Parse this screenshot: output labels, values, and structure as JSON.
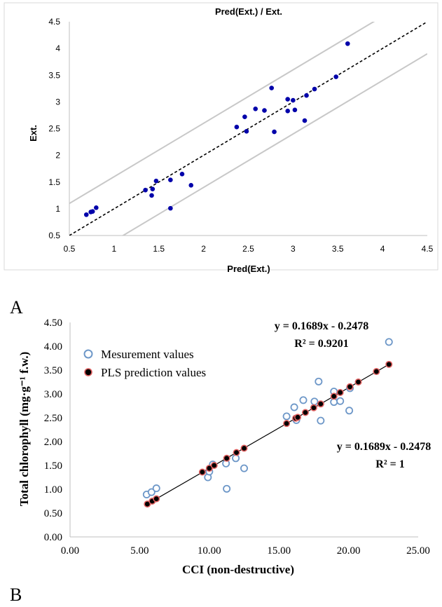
{
  "panel_labels": [
    "A",
    "B"
  ],
  "chart_data": [
    {
      "type": "scatter",
      "title": "Pred(Ext.) / Ext.",
      "xlabel": "Pred(Ext.)",
      "ylabel": "Ext.",
      "xlim": [
        0.5,
        4.5
      ],
      "ylim": [
        0.5,
        4.5
      ],
      "xticks": [
        "0.5",
        "1",
        "1.5",
        "2",
        "2.5",
        "3",
        "3.5",
        "4",
        "4.5"
      ],
      "yticks": [
        "0.5",
        "1",
        "1.5",
        "2",
        "2.5",
        "3",
        "3.5",
        "4",
        "4.5"
      ],
      "grid": false,
      "legend": "none",
      "point_color": "#0000aa",
      "band_color": "#c8c8c8",
      "identity_line": {
        "slope": 1,
        "intercept": 0,
        "style": "dashed"
      },
      "bands": [
        {
          "slope": 1,
          "intercept": 0.6
        },
        {
          "slope": 1,
          "intercept": -0.6
        }
      ],
      "series": [
        {
          "x": [
            0.69,
            0.74,
            0.76,
            0.8,
            1.35,
            1.42,
            1.43,
            1.47,
            1.63,
            1.63,
            1.76,
            1.86,
            2.37,
            2.46,
            2.48,
            2.58,
            2.68,
            2.76,
            2.79,
            2.94,
            2.94,
            3.0,
            3.02,
            3.13,
            3.15,
            3.24,
            3.48,
            3.61
          ],
          "y": [
            0.89,
            0.94,
            0.95,
            1.02,
            1.35,
            1.25,
            1.37,
            1.52,
            1.54,
            1.01,
            1.65,
            1.44,
            2.53,
            2.72,
            2.45,
            2.87,
            2.84,
            3.26,
            2.44,
            3.05,
            2.83,
            3.03,
            2.85,
            2.65,
            3.12,
            3.24,
            3.47,
            4.09
          ]
        }
      ]
    },
    {
      "type": "scatter",
      "title": "",
      "xlabel": "CCI (non-destructive)",
      "ylabel": "Total chlorophyll (mg·g⁻¹ f.w.)",
      "xlim": [
        0,
        25
      ],
      "ylim": [
        0,
        4.5
      ],
      "xticks": [
        "0.00",
        "5.00",
        "10.00",
        "15.00",
        "20.00",
        "25.00"
      ],
      "yticks": [
        "0.00",
        "0.50",
        "1.00",
        "1.50",
        "2.00",
        "2.50",
        "3.00",
        "3.50",
        "4.00",
        "4.50"
      ],
      "grid": false,
      "legend": "top-left",
      "annotations": [
        {
          "line1": "y = 0.1689x - 0.2478",
          "line2": "R² = 0.9201"
        },
        {
          "line1": "y = 0.1689x - 0.2478",
          "line2": "R² = 1"
        }
      ],
      "trendline": {
        "slope": 0.1689,
        "intercept": -0.2478,
        "from": 5.5,
        "to": 22.9
      },
      "series": [
        {
          "name": "Mesurement values",
          "marker": "open-circle",
          "color": "#6d97c8",
          "x": [
            5.5,
            5.85,
            6.2,
            9.9,
            10.0,
            10.25,
            11.2,
            11.25,
            11.9,
            12.5,
            15.55,
            16.1,
            16.25,
            16.75,
            17.55,
            17.85,
            18.0,
            18.95,
            18.95,
            19.4,
            20.05,
            20.1,
            22.9
          ],
          "y": [
            0.89,
            0.94,
            1.02,
            1.25,
            1.37,
            1.52,
            1.54,
            1.01,
            1.65,
            1.44,
            2.53,
            2.72,
            2.45,
            2.87,
            2.84,
            3.26,
            2.44,
            3.05,
            2.83,
            2.85,
            2.65,
            3.12,
            4.09
          ]
        },
        {
          "name": "PLS prediction values",
          "marker": "filled-circle",
          "color": "#000000",
          "edge_color": "#e06060",
          "x": [
            5.55,
            5.9,
            6.2,
            9.5,
            10.0,
            10.35,
            11.25,
            11.95,
            12.5,
            15.55,
            16.2,
            16.35,
            16.9,
            17.5,
            18.0,
            18.95,
            19.4,
            20.1,
            20.7,
            22.0,
            22.9
          ],
          "y": [
            0.69,
            0.75,
            0.8,
            1.36,
            1.44,
            1.5,
            1.65,
            1.77,
            1.86,
            2.38,
            2.49,
            2.51,
            2.61,
            2.71,
            2.79,
            2.95,
            3.03,
            3.15,
            3.25,
            3.47,
            3.62
          ]
        }
      ]
    }
  ]
}
